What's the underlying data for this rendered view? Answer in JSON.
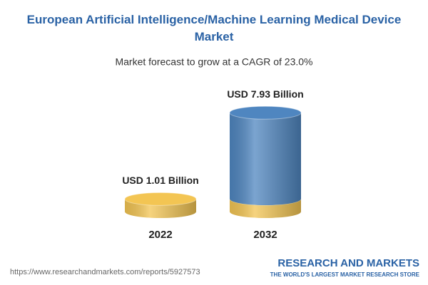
{
  "chart_data": {
    "type": "cylinder",
    "title": "European Artificial Intelligence/Machine Learning Medical Device Market",
    "subtitle": "Market forecast to grow at a CAGR of 23.0%",
    "categories": [
      "2022",
      "2032"
    ],
    "values": [
      1.01,
      7.93
    ],
    "value_labels": [
      "USD 1.01 Billion",
      "USD 7.93 Billion"
    ],
    "color": "#4f86c0",
    "base_color": "#f3c553"
  },
  "footer": {
    "url": "https://www.researchandmarkets.com/reports/5927573",
    "brand": "RESEARCH AND MARKETS",
    "tagline": "THE WORLD'S LARGEST MARKET RESEARCH STORE"
  }
}
